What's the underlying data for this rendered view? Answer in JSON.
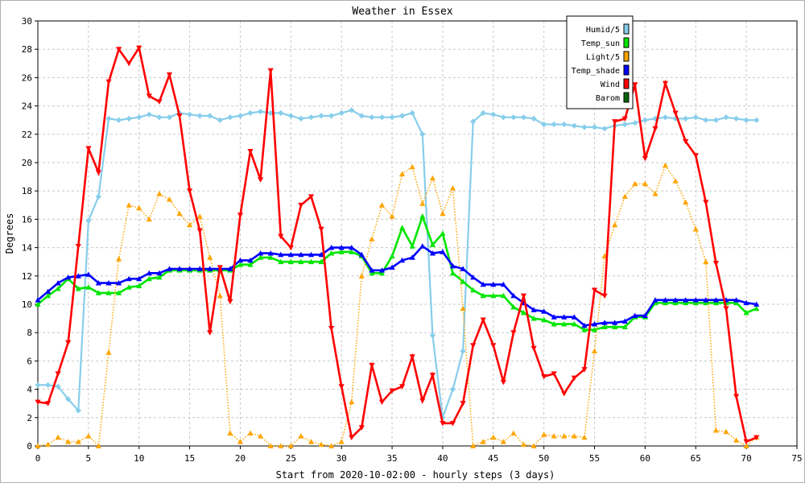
{
  "chart_data": {
    "type": "line",
    "title": "Weather in Essex",
    "xlabel": "Start from 2020-10-02:00 - hourly steps (3 days)",
    "ylabel": "Degrees",
    "xlim": [
      0,
      75
    ],
    "ylim": [
      0,
      30
    ],
    "xticks": [
      0,
      5,
      10,
      15,
      20,
      25,
      30,
      35,
      40,
      45,
      50,
      55,
      60,
      65,
      70,
      75
    ],
    "yticks": [
      0,
      2,
      4,
      6,
      8,
      10,
      12,
      14,
      16,
      18,
      20,
      22,
      24,
      26,
      28,
      30
    ],
    "grid": true,
    "legend_position": "top-right",
    "series": [
      {
        "name": "Humid/5",
        "color": "#87ceeb",
        "line": "solid",
        "marker": "diamond",
        "values": [
          4.3,
          4.3,
          4.2,
          3.3,
          2.5,
          15.9,
          17.6,
          23.1,
          23.0,
          23.1,
          23.2,
          23.4,
          23.2,
          23.2,
          23.5,
          23.4,
          23.3,
          23.3,
          23.0,
          23.2,
          23.3,
          23.5,
          23.6,
          23.5,
          23.5,
          23.3,
          23.1,
          23.2,
          23.3,
          23.3,
          23.5,
          23.7,
          23.3,
          23.2,
          23.2,
          23.2,
          23.3,
          23.5,
          22.0,
          7.8,
          2.0,
          4.0,
          6.7,
          22.9,
          23.5,
          23.4,
          23.2,
          23.2,
          23.2,
          23.1,
          22.7,
          22.7,
          22.7,
          22.6,
          22.5,
          22.5,
          22.4,
          22.6,
          22.7,
          22.8,
          23.0,
          23.1,
          23.2,
          23.1,
          23.1,
          23.2,
          23.0,
          23.0,
          23.2,
          23.1,
          23.0,
          23.0
        ]
      },
      {
        "name": "Temp_sun",
        "color": "#00e600",
        "line": "solid",
        "marker": "triangle-up",
        "values": [
          10.0,
          10.6,
          11.1,
          11.8,
          11.1,
          11.2,
          10.8,
          10.8,
          10.8,
          11.2,
          11.3,
          11.8,
          11.9,
          12.4,
          12.4,
          12.4,
          12.4,
          12.4,
          12.4,
          12.4,
          12.8,
          12.8,
          13.3,
          13.3,
          13.0,
          13.0,
          13.0,
          13.0,
          13.0,
          13.6,
          13.7,
          13.7,
          13.4,
          12.2,
          12.2,
          13.4,
          15.4,
          14.1,
          16.2,
          14.2,
          15.0,
          12.2,
          11.6,
          11.0,
          10.6,
          10.6,
          10.6,
          9.8,
          9.4,
          9.0,
          8.9,
          8.6,
          8.6,
          8.6,
          8.2,
          8.2,
          8.4,
          8.4,
          8.4,
          9.1,
          9.1,
          10.1,
          10.1,
          10.1,
          10.1,
          10.1,
          10.1,
          10.1,
          10.1,
          10.1,
          9.4,
          9.7
        ]
      },
      {
        "name": "Light/5",
        "color": "#ffa500",
        "line": "dotted",
        "marker": "triangle-up",
        "values": [
          0.0,
          0.1,
          0.6,
          0.3,
          0.3,
          0.7,
          0.0,
          6.6,
          13.2,
          17.0,
          16.8,
          16.0,
          17.8,
          17.4,
          16.4,
          15.6,
          16.2,
          13.3,
          10.6,
          0.9,
          0.3,
          0.9,
          0.7,
          0.0,
          0.0,
          0.0,
          0.7,
          0.3,
          0.1,
          0.0,
          0.3,
          3.1,
          12.0,
          14.6,
          17.0,
          16.2,
          19.2,
          19.7,
          17.1,
          18.9,
          16.4,
          18.2,
          9.7,
          0.0,
          0.3,
          0.6,
          0.3,
          0.9,
          0.1,
          0.0,
          0.8,
          0.7,
          0.7,
          0.7,
          0.6,
          6.7,
          13.4,
          15.6,
          17.6,
          18.5,
          18.5,
          17.8,
          19.8,
          18.7,
          17.2,
          15.3,
          13.0,
          1.1,
          1.0,
          0.4,
          0.0,
          0.6
        ]
      },
      {
        "name": "Temp_shade",
        "color": "#0000ff",
        "line": "solid",
        "marker": "triangle-up",
        "values": [
          10.3,
          10.9,
          11.5,
          11.9,
          12.0,
          12.1,
          11.5,
          11.5,
          11.5,
          11.8,
          11.8,
          12.2,
          12.2,
          12.5,
          12.5,
          12.5,
          12.5,
          12.5,
          12.5,
          12.5,
          13.1,
          13.1,
          13.6,
          13.6,
          13.5,
          13.5,
          13.5,
          13.5,
          13.5,
          14.0,
          14.0,
          14.0,
          13.5,
          12.4,
          12.4,
          12.6,
          13.1,
          13.3,
          14.1,
          13.6,
          13.7,
          12.7,
          12.5,
          11.9,
          11.4,
          11.4,
          11.4,
          10.6,
          10.1,
          9.6,
          9.5,
          9.1,
          9.1,
          9.1,
          8.5,
          8.6,
          8.7,
          8.7,
          8.8,
          9.2,
          9.2,
          10.3,
          10.3,
          10.3,
          10.3,
          10.3,
          10.3,
          10.3,
          10.3,
          10.3,
          10.1,
          10.0
        ]
      },
      {
        "name": "Wind",
        "color": "#ff0000",
        "line": "solid",
        "marker": "triangle-down",
        "values": [
          3.1,
          3.0,
          5.1,
          7.3,
          14.1,
          21.0,
          19.3,
          25.7,
          28.0,
          27.0,
          28.1,
          24.7,
          24.3,
          26.2,
          23.3,
          18.0,
          15.2,
          8.0,
          12.6,
          10.2,
          16.3,
          20.8,
          18.8,
          26.5,
          14.8,
          14.0,
          17.0,
          17.6,
          15.3,
          8.3,
          4.2,
          0.6,
          1.3,
          5.7,
          3.1,
          3.9,
          4.2,
          6.3,
          3.2,
          5.0,
          1.6,
          1.6,
          3.0,
          7.1,
          8.9,
          7.1,
          4.5,
          8.0,
          10.6,
          6.9,
          4.9,
          5.1,
          3.7,
          4.8,
          5.4,
          11.0,
          10.6,
          22.9,
          23.1,
          25.5,
          20.3,
          22.4,
          25.6,
          23.5,
          21.5,
          20.5,
          17.2,
          12.9,
          9.7,
          3.5,
          0.3,
          0.6
        ]
      },
      {
        "name": "Barom",
        "color": "#006400",
        "line": "solid",
        "marker": "none",
        "values": []
      }
    ]
  }
}
